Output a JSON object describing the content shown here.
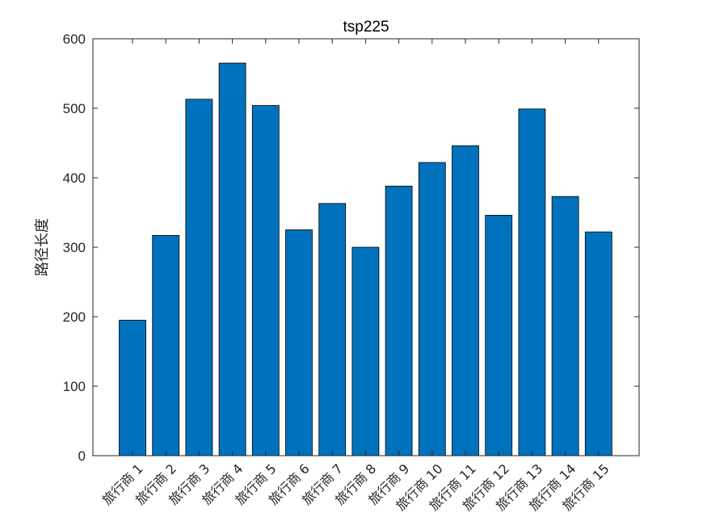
{
  "chart_data": {
    "type": "bar",
    "title": "tsp225",
    "xlabel": "",
    "ylabel": "路径长度",
    "categories": [
      "旅行商 1",
      "旅行商 2",
      "旅行商 3",
      "旅行商 4",
      "旅行商 5",
      "旅行商 6",
      "旅行商 7",
      "旅行商 8",
      "旅行商 9",
      "旅行商 10",
      "旅行商 11",
      "旅行商 12",
      "旅行商 13",
      "旅行商 14",
      "旅行商 15"
    ],
    "values": [
      195,
      317,
      513,
      565,
      504,
      325,
      363,
      300,
      388,
      422,
      446,
      346,
      499,
      373,
      322
    ],
    "ylim": [
      0,
      600
    ],
    "yticks": [
      "0",
      "100",
      "200",
      "300",
      "400",
      "500",
      "600"
    ],
    "grid": false,
    "legend": "none",
    "colors": {
      "bar": "#0072bd",
      "bar_edge": "#000000",
      "axis": "#262626"
    }
  }
}
